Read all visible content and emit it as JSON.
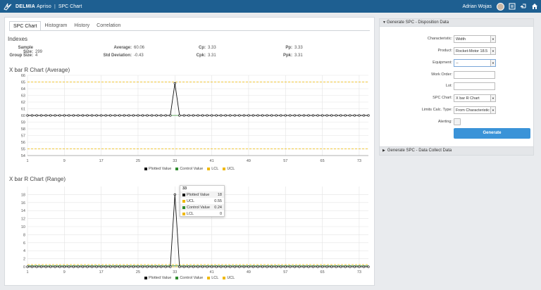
{
  "topbar": {
    "brand": "DELMIA",
    "brand_sub": "Apriso",
    "separator": "|",
    "title": "SPC Chart",
    "user": "Adrian Wojas",
    "icons": [
      "avatar",
      "report-icon",
      "back-icon",
      "home-icon"
    ]
  },
  "tabs": [
    "SPC Chart",
    "Histogram",
    "History",
    "Correlation"
  ],
  "indexes": {
    "title": "Indexes",
    "stats": [
      {
        "label": "Sample Size:",
        "value": "299"
      },
      {
        "label": "Average:",
        "value": "60.06"
      },
      {
        "label": "Cp:",
        "value": "3.33"
      },
      {
        "label": "Pp:",
        "value": "3.33"
      },
      {
        "label": "Group Size:",
        "value": "4"
      },
      {
        "label": "Std Deviation:",
        "value": "-0.43"
      },
      {
        "label": "Cpk:",
        "value": "3.31"
      },
      {
        "label": "Ppk:",
        "value": "3.31"
      }
    ]
  },
  "chart_data": [
    {
      "type": "line",
      "title": "X bar R Chart (Average)",
      "x_ticks": [
        1,
        9,
        17,
        25,
        33,
        41,
        49,
        57,
        65,
        73
      ],
      "xlim": [
        1,
        75
      ],
      "ylim": [
        54,
        66
      ],
      "y_ticks": [
        54,
        55,
        56,
        57,
        58,
        59,
        60,
        61,
        62,
        63,
        64,
        65,
        66
      ],
      "series": [
        {
          "name": "Plotted Value",
          "color": "#111111",
          "baseline": 60,
          "spike": {
            "x": 33,
            "y": 64.8
          }
        },
        {
          "name": "Control Value",
          "color": "#2e8b2e",
          "constant": 60
        },
        {
          "name": "LCL",
          "color": "#f0b800",
          "constant": 55
        },
        {
          "name": "UCL",
          "color": "#f0b800",
          "constant": 65
        }
      ],
      "grid": true,
      "legend": "bottom"
    },
    {
      "type": "line",
      "title": "X bar R Chart (Range)",
      "x_ticks": [
        1,
        9,
        17,
        25,
        33,
        41,
        49,
        57,
        65,
        73
      ],
      "xlim": [
        1,
        75
      ],
      "ylim": [
        0,
        20
      ],
      "y_ticks": [
        0,
        2,
        4,
        6,
        8,
        10,
        12,
        14,
        16,
        18
      ],
      "series": [
        {
          "name": "Plotted Value",
          "color": "#111111",
          "baseline": 0,
          "spike": {
            "x": 33,
            "y": 18
          }
        },
        {
          "name": "Control Value",
          "color": "#2e8b2e",
          "constant": 0.24
        },
        {
          "name": "LCL",
          "color": "#f0b800",
          "constant": 0
        },
        {
          "name": "UCL",
          "color": "#f0b800",
          "constant": 0.55
        }
      ],
      "grid": true,
      "legend": "bottom",
      "tooltip": {
        "header": "33",
        "rows": [
          {
            "name": "Plotted Value",
            "value": "18",
            "color": "#111111"
          },
          {
            "name": "UCL",
            "value": "0.55",
            "color": "#f0b800"
          },
          {
            "name": "Control Value",
            "value": "0.24",
            "color": "#2e8b2e"
          },
          {
            "name": "LCL",
            "value": "0",
            "color": "#f0b800"
          }
        ]
      }
    }
  ],
  "legend_items": [
    {
      "name": "Plotted Value",
      "color": "#111111"
    },
    {
      "name": "Control Value",
      "color": "#2e8b2e"
    },
    {
      "name": "LCL",
      "color": "#f0b800"
    },
    {
      "name": "UCL",
      "color": "#f0b800"
    }
  ],
  "form": {
    "header": "Generate SPC - Disposition Data",
    "rows": [
      {
        "label": "Characteristic:",
        "type": "select",
        "value": "Width"
      },
      {
        "label": "Product:",
        "type": "select",
        "value": "Rocket-Motor 18.5"
      },
      {
        "label": "Equipment:",
        "type": "select",
        "value": "--"
      },
      {
        "label": "Work Order:",
        "type": "input",
        "value": ""
      },
      {
        "label": "Lot:",
        "type": "input",
        "value": ""
      },
      {
        "label": "SPC Chart:",
        "type": "select",
        "value": "X bar R Chart"
      },
      {
        "label": "Limits Calc. Type:",
        "type": "select",
        "value": "From Characteristic"
      },
      {
        "label": "Alerting:",
        "type": "checkbox",
        "value": ""
      }
    ],
    "button": "Generate"
  },
  "collect_header": "Generate SPC - Data Collect Data"
}
